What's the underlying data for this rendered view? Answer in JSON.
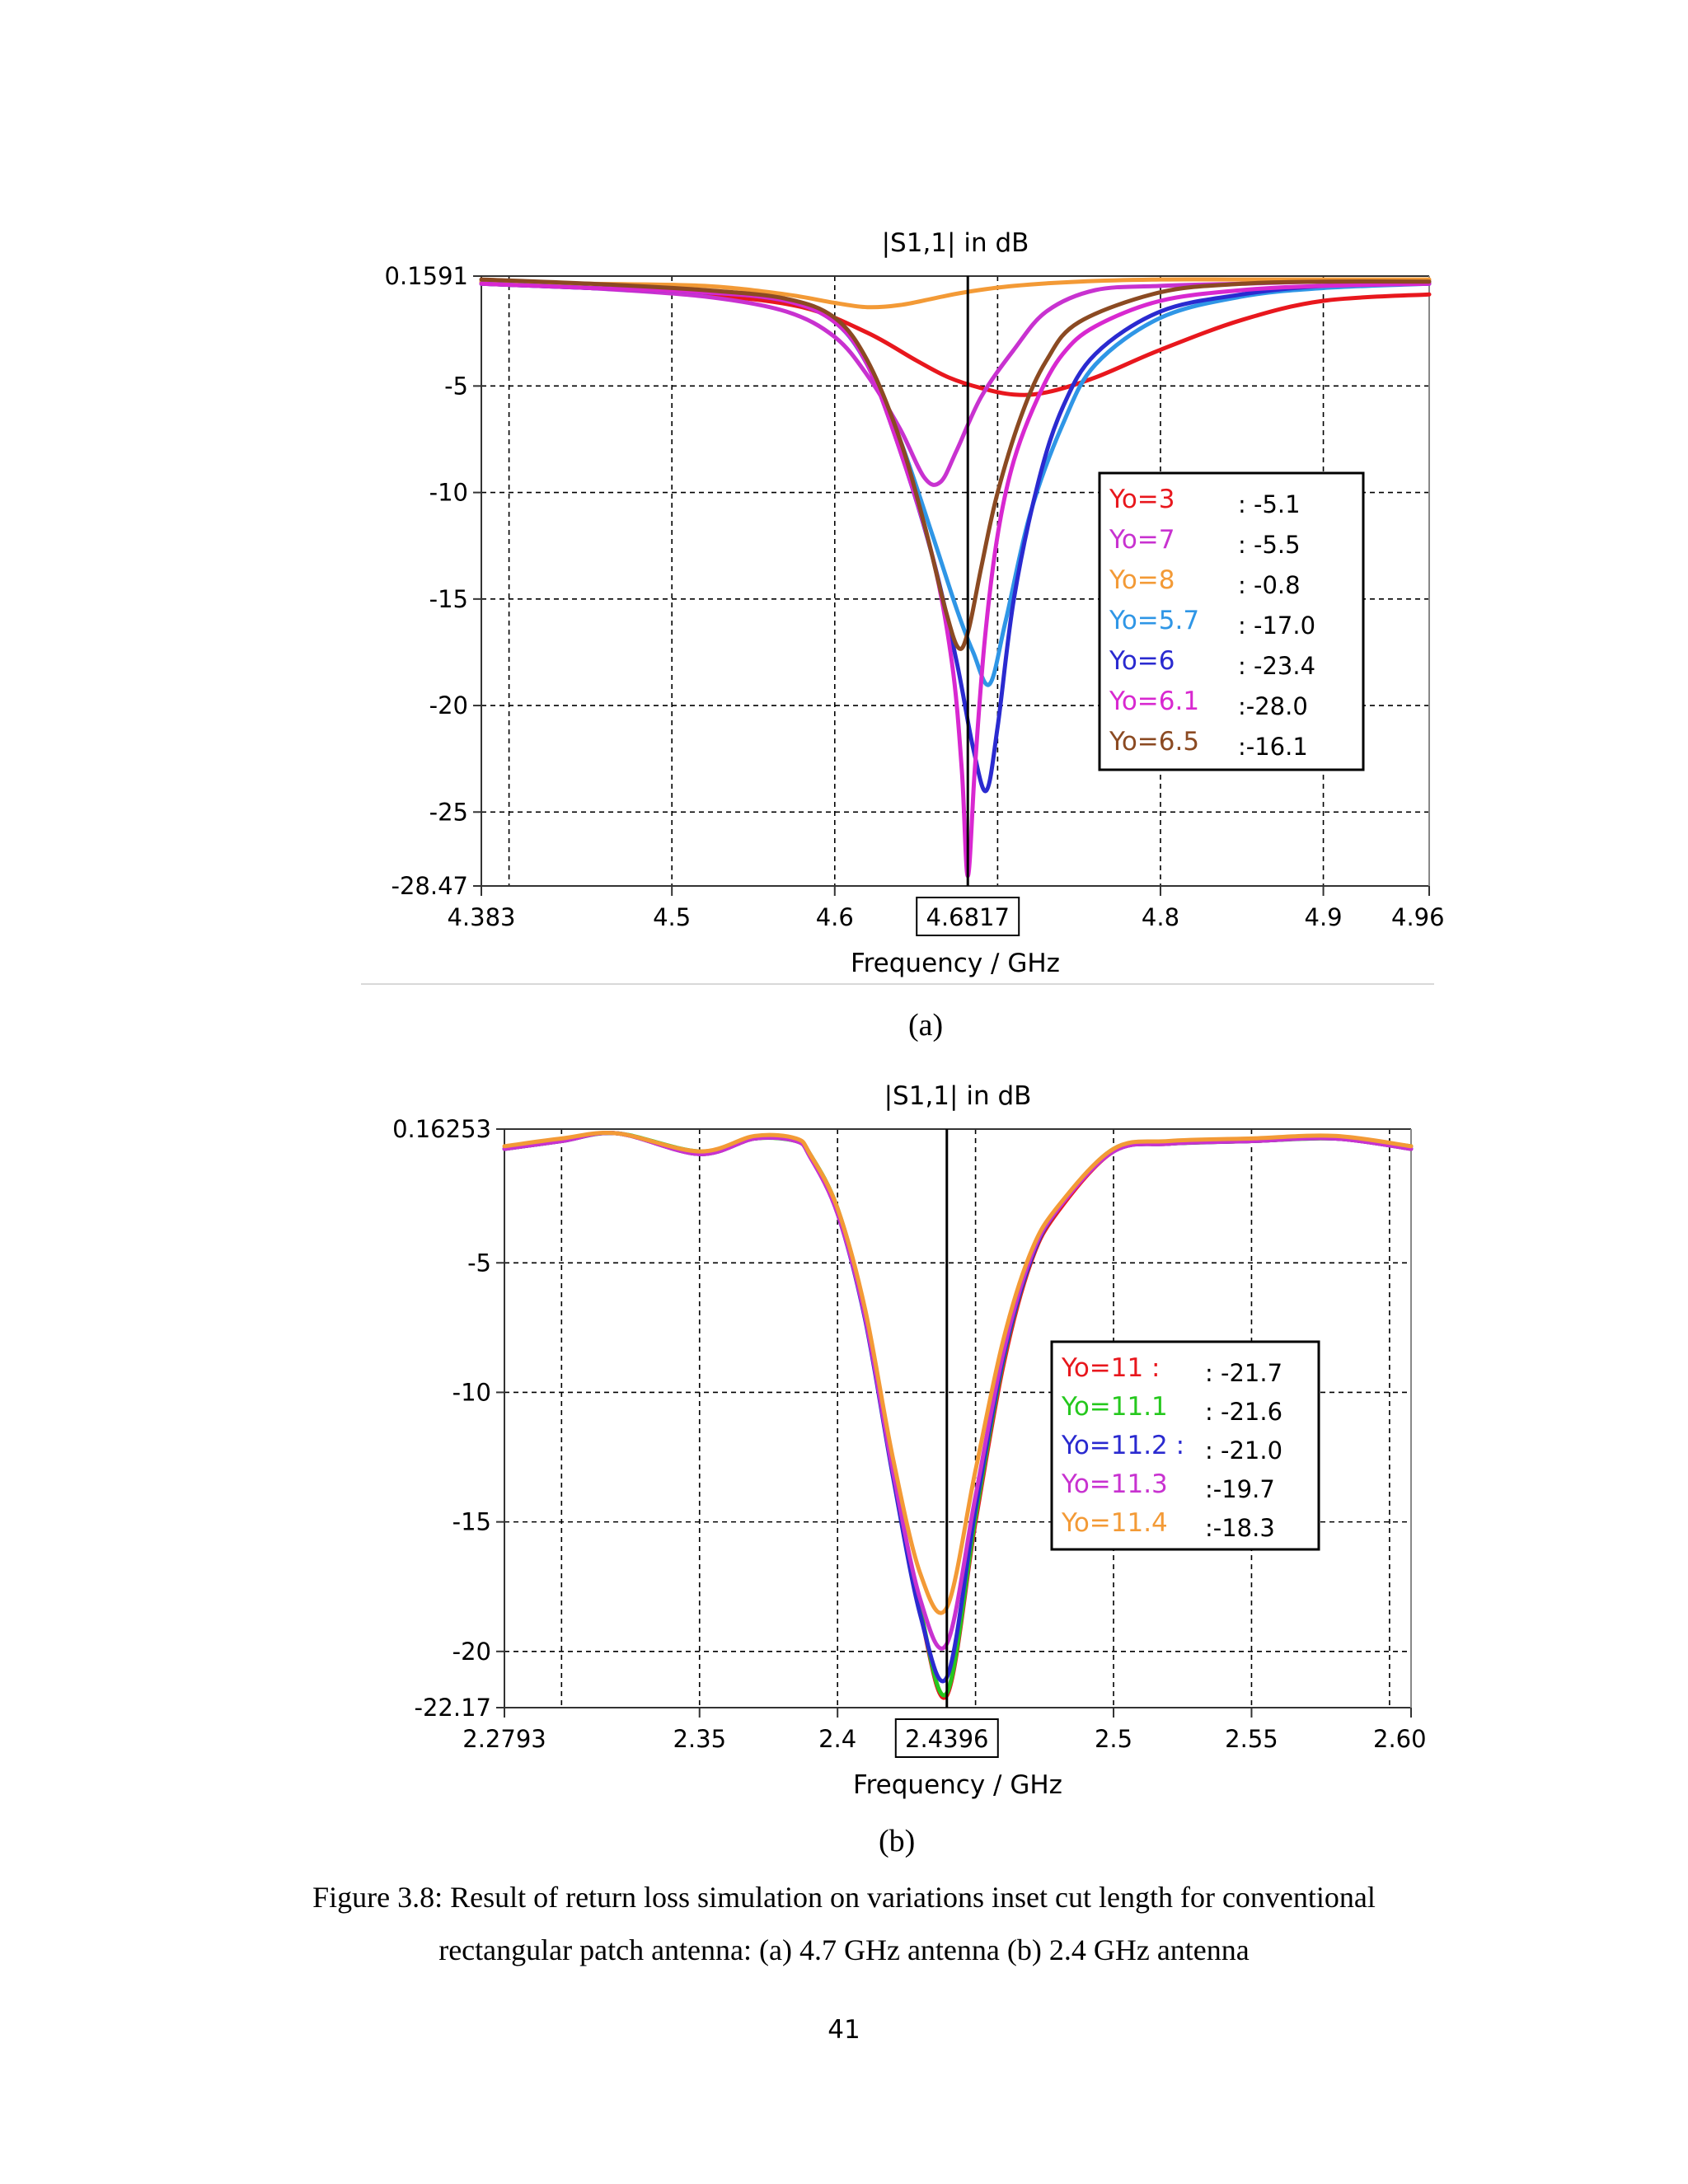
{
  "chart_data": [
    {
      "type": "line",
      "title": "|S1,1| in dB",
      "xlabel": "Frequency / GHz",
      "ylabel": "",
      "xlim": [
        4.383,
        4.965
      ],
      "ylim": [
        -28.47,
        0.1591
      ],
      "xticks": [
        4.383,
        4.5,
        4.6,
        4.8,
        4.9
      ],
      "xtick_labels": [
        "4.383",
        "4.5",
        "4.6",
        "4.8",
        "4.9"
      ],
      "xtick_edge_label": "4.96",
      "yticks": [
        0.1591,
        -5,
        -10,
        -15,
        -20,
        -25,
        -28.47
      ],
      "ytick_labels": [
        "0.1591",
        "-5",
        "-10",
        "-15",
        "-20",
        "-25",
        "-28.47"
      ],
      "marker": {
        "x": 4.6817,
        "label": "4.6817"
      },
      "legend_position": "right",
      "series": [
        {
          "name": "Yo=3",
          "color": "#e8171d",
          "legend_value": ": -5.1",
          "x": [
            4.383,
            4.45,
            4.52,
            4.58,
            4.62,
            4.65,
            4.67,
            4.69,
            4.71,
            4.73,
            4.76,
            4.8,
            4.85,
            4.9,
            4.965
          ],
          "y": [
            -0.2,
            -0.4,
            -0.7,
            -1.3,
            -2.5,
            -3.8,
            -4.6,
            -5.1,
            -5.4,
            -5.3,
            -4.6,
            -3.3,
            -1.9,
            -1.0,
            -0.7
          ]
        },
        {
          "name": "Yo=7",
          "color": "#c832d0",
          "legend_value": ": -5.5",
          "x": [
            4.383,
            4.45,
            4.52,
            4.57,
            4.6,
            4.62,
            4.64,
            4.655,
            4.665,
            4.675,
            4.69,
            4.71,
            4.73,
            4.76,
            4.8,
            4.85,
            4.9,
            4.965
          ],
          "y": [
            -0.1,
            -0.4,
            -0.8,
            -1.5,
            -2.7,
            -4.5,
            -7.0,
            -9.3,
            -9.5,
            -8.0,
            -5.5,
            -3.3,
            -1.5,
            -0.5,
            -0.3,
            -0.2,
            -0.1,
            -0.1
          ]
        },
        {
          "name": "Yo=8",
          "color": "#f39a36",
          "legend_value": ": -0.8",
          "x": [
            4.383,
            4.45,
            4.52,
            4.57,
            4.6,
            4.62,
            4.64,
            4.66,
            4.68,
            4.71,
            4.75,
            4.8,
            4.85,
            4.9,
            4.965
          ],
          "y": [
            -0.1,
            -0.2,
            -0.3,
            -0.7,
            -1.1,
            -1.3,
            -1.2,
            -0.9,
            -0.6,
            -0.3,
            -0.1,
            0.0,
            0.0,
            0.0,
            0.0
          ]
        },
        {
          "name": "Yo=5.7",
          "color": "#2f96e6",
          "legend_value": ": -17.0",
          "x": [
            4.383,
            4.45,
            4.52,
            4.57,
            4.6,
            4.62,
            4.64,
            4.66,
            4.675,
            4.685,
            4.695,
            4.705,
            4.72,
            4.74,
            4.76,
            4.8,
            4.85,
            4.9,
            4.965
          ],
          "y": [
            -0.2,
            -0.4,
            -0.6,
            -1.0,
            -2.0,
            -4.0,
            -7.5,
            -12.0,
            -15.5,
            -17.5,
            -19.0,
            -16.0,
            -11.0,
            -6.8,
            -4.0,
            -1.8,
            -0.8,
            -0.4,
            -0.2
          ]
        },
        {
          "name": "Yo=6",
          "color": "#2a2ad0",
          "legend_value": ": -23.4",
          "x": [
            4.383,
            4.45,
            4.52,
            4.57,
            4.6,
            4.62,
            4.64,
            4.66,
            4.675,
            4.685,
            4.693,
            4.7,
            4.71,
            4.725,
            4.74,
            4.76,
            4.8,
            4.85,
            4.9,
            4.965
          ],
          "y": [
            -0.2,
            -0.4,
            -0.6,
            -1.0,
            -2.0,
            -4.0,
            -8.0,
            -13.0,
            -18.0,
            -22.0,
            -24.0,
            -21.0,
            -15.0,
            -9.5,
            -6.0,
            -3.5,
            -1.5,
            -0.7,
            -0.3,
            -0.2
          ]
        },
        {
          "name": "Yo=6.1",
          "color": "#d828d0",
          "legend_value": ":-28.0",
          "x": [
            4.383,
            4.45,
            4.52,
            4.57,
            4.6,
            4.62,
            4.64,
            4.66,
            4.672,
            4.678,
            4.6817,
            4.686,
            4.692,
            4.7,
            4.71,
            4.725,
            4.74,
            4.76,
            4.8,
            4.85,
            4.9,
            4.965
          ],
          "y": [
            -0.2,
            -0.4,
            -0.6,
            -1.0,
            -2.0,
            -4.0,
            -8.0,
            -13.0,
            -18.0,
            -23.0,
            -28.0,
            -23.0,
            -17.0,
            -12.0,
            -8.5,
            -5.5,
            -3.5,
            -2.2,
            -1.0,
            -0.5,
            -0.3,
            -0.2
          ]
        },
        {
          "name": "Yo=6.5",
          "color": "#8b4a22",
          "legend_value": ":-16.1",
          "x": [
            4.383,
            4.45,
            4.52,
            4.57,
            4.6,
            4.62,
            4.64,
            4.655,
            4.668,
            4.676,
            4.682,
            4.69,
            4.7,
            4.715,
            4.73,
            4.75,
            4.8,
            4.85,
            4.9,
            4.965
          ],
          "y": [
            0.0,
            -0.2,
            -0.5,
            -0.9,
            -1.8,
            -3.8,
            -7.5,
            -11.5,
            -15.5,
            -17.3,
            -16.5,
            -13.5,
            -10.0,
            -6.3,
            -3.8,
            -2.0,
            -0.6,
            -0.2,
            -0.1,
            -0.1
          ]
        }
      ]
    },
    {
      "type": "line",
      "title": "|S1,1| in dB",
      "xlabel": "Frequency / GHz",
      "ylabel": "",
      "xlim": [
        2.2793,
        2.6078
      ],
      "ylim": [
        -22.17,
        0.16253
      ],
      "xticks": [
        2.2793,
        2.35,
        2.4,
        2.5,
        2.55
      ],
      "xtick_labels": [
        "2.2793",
        "2.35",
        "2.4",
        "2.5",
        "2.55"
      ],
      "xtick_edge_label": "2.60",
      "yticks": [
        0.16253,
        -5,
        -10,
        -15,
        -20,
        -22.17
      ],
      "ytick_labels": [
        "0.16253",
        "-5",
        "-10",
        "-15",
        "-20",
        "-22.17"
      ],
      "marker": {
        "x": 2.4396,
        "label": "2.4396"
      },
      "legend_position": "right",
      "series": [
        {
          "name": "Yo=11 :",
          "color": "#e8171d",
          "legend_value": ": -21.7",
          "x": [
            2.2793,
            2.3,
            2.32,
            2.35,
            2.37,
            2.385,
            2.39,
            2.4,
            2.41,
            2.42,
            2.43,
            2.4396,
            2.45,
            2.46,
            2.47,
            2.48,
            2.5,
            2.52,
            2.55,
            2.58,
            2.6078
          ],
          "y": [
            -0.6,
            -0.3,
            0.0,
            -0.8,
            -0.2,
            -0.3,
            -0.8,
            -3.0,
            -7.0,
            -13.0,
            -18.5,
            -21.7,
            -15.0,
            -9.0,
            -5.0,
            -3.0,
            -0.7,
            -0.4,
            -0.3,
            -0.2,
            -0.6
          ]
        },
        {
          "name": "Yo=11.1",
          "color": "#26c81e",
          "legend_value": ": -21.6",
          "x": [
            2.2793,
            2.3,
            2.32,
            2.35,
            2.37,
            2.385,
            2.39,
            2.4,
            2.41,
            2.42,
            2.43,
            2.4396,
            2.45,
            2.46,
            2.47,
            2.48,
            2.5,
            2.52,
            2.55,
            2.58,
            2.6078
          ],
          "y": [
            -0.6,
            -0.3,
            0.0,
            -0.7,
            -0.2,
            -0.3,
            -0.8,
            -2.9,
            -6.9,
            -12.9,
            -18.4,
            -21.6,
            -14.8,
            -8.8,
            -4.9,
            -2.9,
            -0.6,
            -0.4,
            -0.3,
            -0.2,
            -0.5
          ]
        },
        {
          "name": "Yo=11.2 :",
          "color": "#2a2ad0",
          "legend_value": ": -21.0",
          "x": [
            2.2793,
            2.3,
            2.32,
            2.35,
            2.37,
            2.385,
            2.39,
            2.4,
            2.41,
            2.42,
            2.43,
            2.4396,
            2.45,
            2.46,
            2.47,
            2.48,
            2.5,
            2.52,
            2.55,
            2.58,
            2.6078
          ],
          "y": [
            -0.6,
            -0.3,
            0.0,
            -0.8,
            -0.2,
            -0.3,
            -0.9,
            -3.1,
            -7.2,
            -13.2,
            -18.6,
            -21.0,
            -14.5,
            -8.7,
            -4.9,
            -2.9,
            -0.7,
            -0.4,
            -0.3,
            -0.2,
            -0.6
          ]
        },
        {
          "name": "Yo=11.3",
          "color": "#c832d0",
          "legend_value": ":-19.7",
          "x": [
            2.2793,
            2.3,
            2.32,
            2.35,
            2.37,
            2.385,
            2.39,
            2.4,
            2.41,
            2.42,
            2.43,
            2.4396,
            2.45,
            2.46,
            2.47,
            2.48,
            2.5,
            2.52,
            2.55,
            2.58,
            2.6078
          ],
          "y": [
            -0.6,
            -0.3,
            0.0,
            -0.8,
            -0.2,
            -0.3,
            -0.9,
            -3.1,
            -7.1,
            -13.0,
            -18.0,
            -19.7,
            -14.0,
            -8.5,
            -4.8,
            -2.9,
            -0.7,
            -0.4,
            -0.3,
            -0.2,
            -0.6
          ]
        },
        {
          "name": "Yo=11.4",
          "color": "#f39a36",
          "legend_value": ":-18.3",
          "x": [
            2.2793,
            2.3,
            2.32,
            2.35,
            2.37,
            2.385,
            2.39,
            2.4,
            2.41,
            2.42,
            2.43,
            2.4396,
            2.45,
            2.46,
            2.47,
            2.48,
            2.5,
            2.52,
            2.55,
            2.58,
            2.6078
          ],
          "y": [
            -0.5,
            -0.2,
            0.0,
            -0.7,
            -0.1,
            -0.2,
            -0.8,
            -2.9,
            -6.8,
            -12.5,
            -17.0,
            -18.3,
            -13.0,
            -8.0,
            -4.6,
            -2.8,
            -0.6,
            -0.3,
            -0.2,
            -0.1,
            -0.5
          ]
        }
      ]
    }
  ],
  "subcaptions": {
    "a": "(a)",
    "b": "(b)"
  },
  "caption": {
    "line1": "Figure 3.8: Result of return loss simulation on variations inset cut length for conventional",
    "line2": "rectangular patch antenna: (a) 4.7 GHz antenna (b) 2.4 GHz antenna"
  },
  "page_number": "41"
}
